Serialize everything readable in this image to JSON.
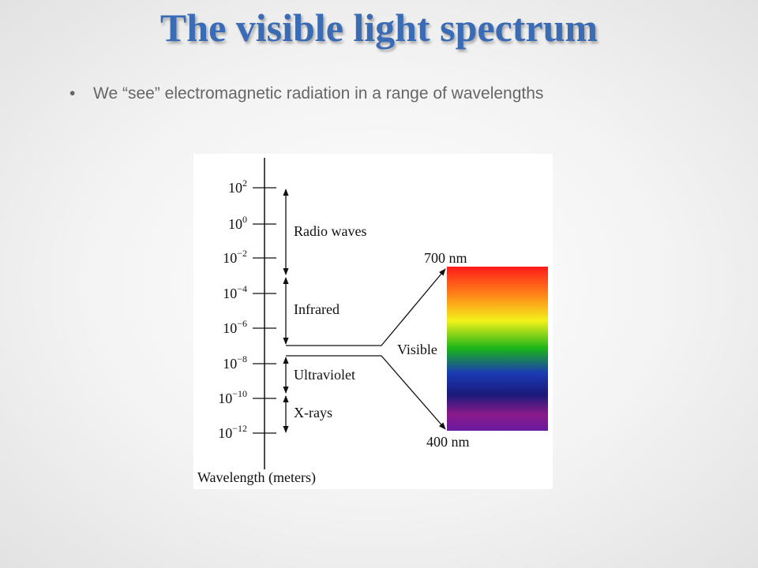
{
  "header": {
    "title": "The visible light spectrum"
  },
  "bullets": [
    "We “see” electromagnetic radiation in a range of wavelengths"
  ],
  "diagram": {
    "ticks": [
      {
        "base": "10",
        "exponent": "2"
      },
      {
        "base": "10",
        "exponent": "0"
      },
      {
        "base": "10",
        "exponent": "−2"
      },
      {
        "base": "10",
        "exponent": "−4"
      },
      {
        "base": "10",
        "exponent": "−6"
      },
      {
        "base": "10",
        "exponent": "−8"
      },
      {
        "base": "10",
        "exponent": "−10"
      },
      {
        "base": "10",
        "exponent": "−12"
      }
    ],
    "bands": [
      "Radio waves",
      "Infrared",
      "Ultraviolet",
      "X-rays"
    ],
    "visible": {
      "label": "Visible",
      "top": "700 nm",
      "bottom": "400 nm"
    },
    "axis_label": "Wavelength (meters)"
  }
}
